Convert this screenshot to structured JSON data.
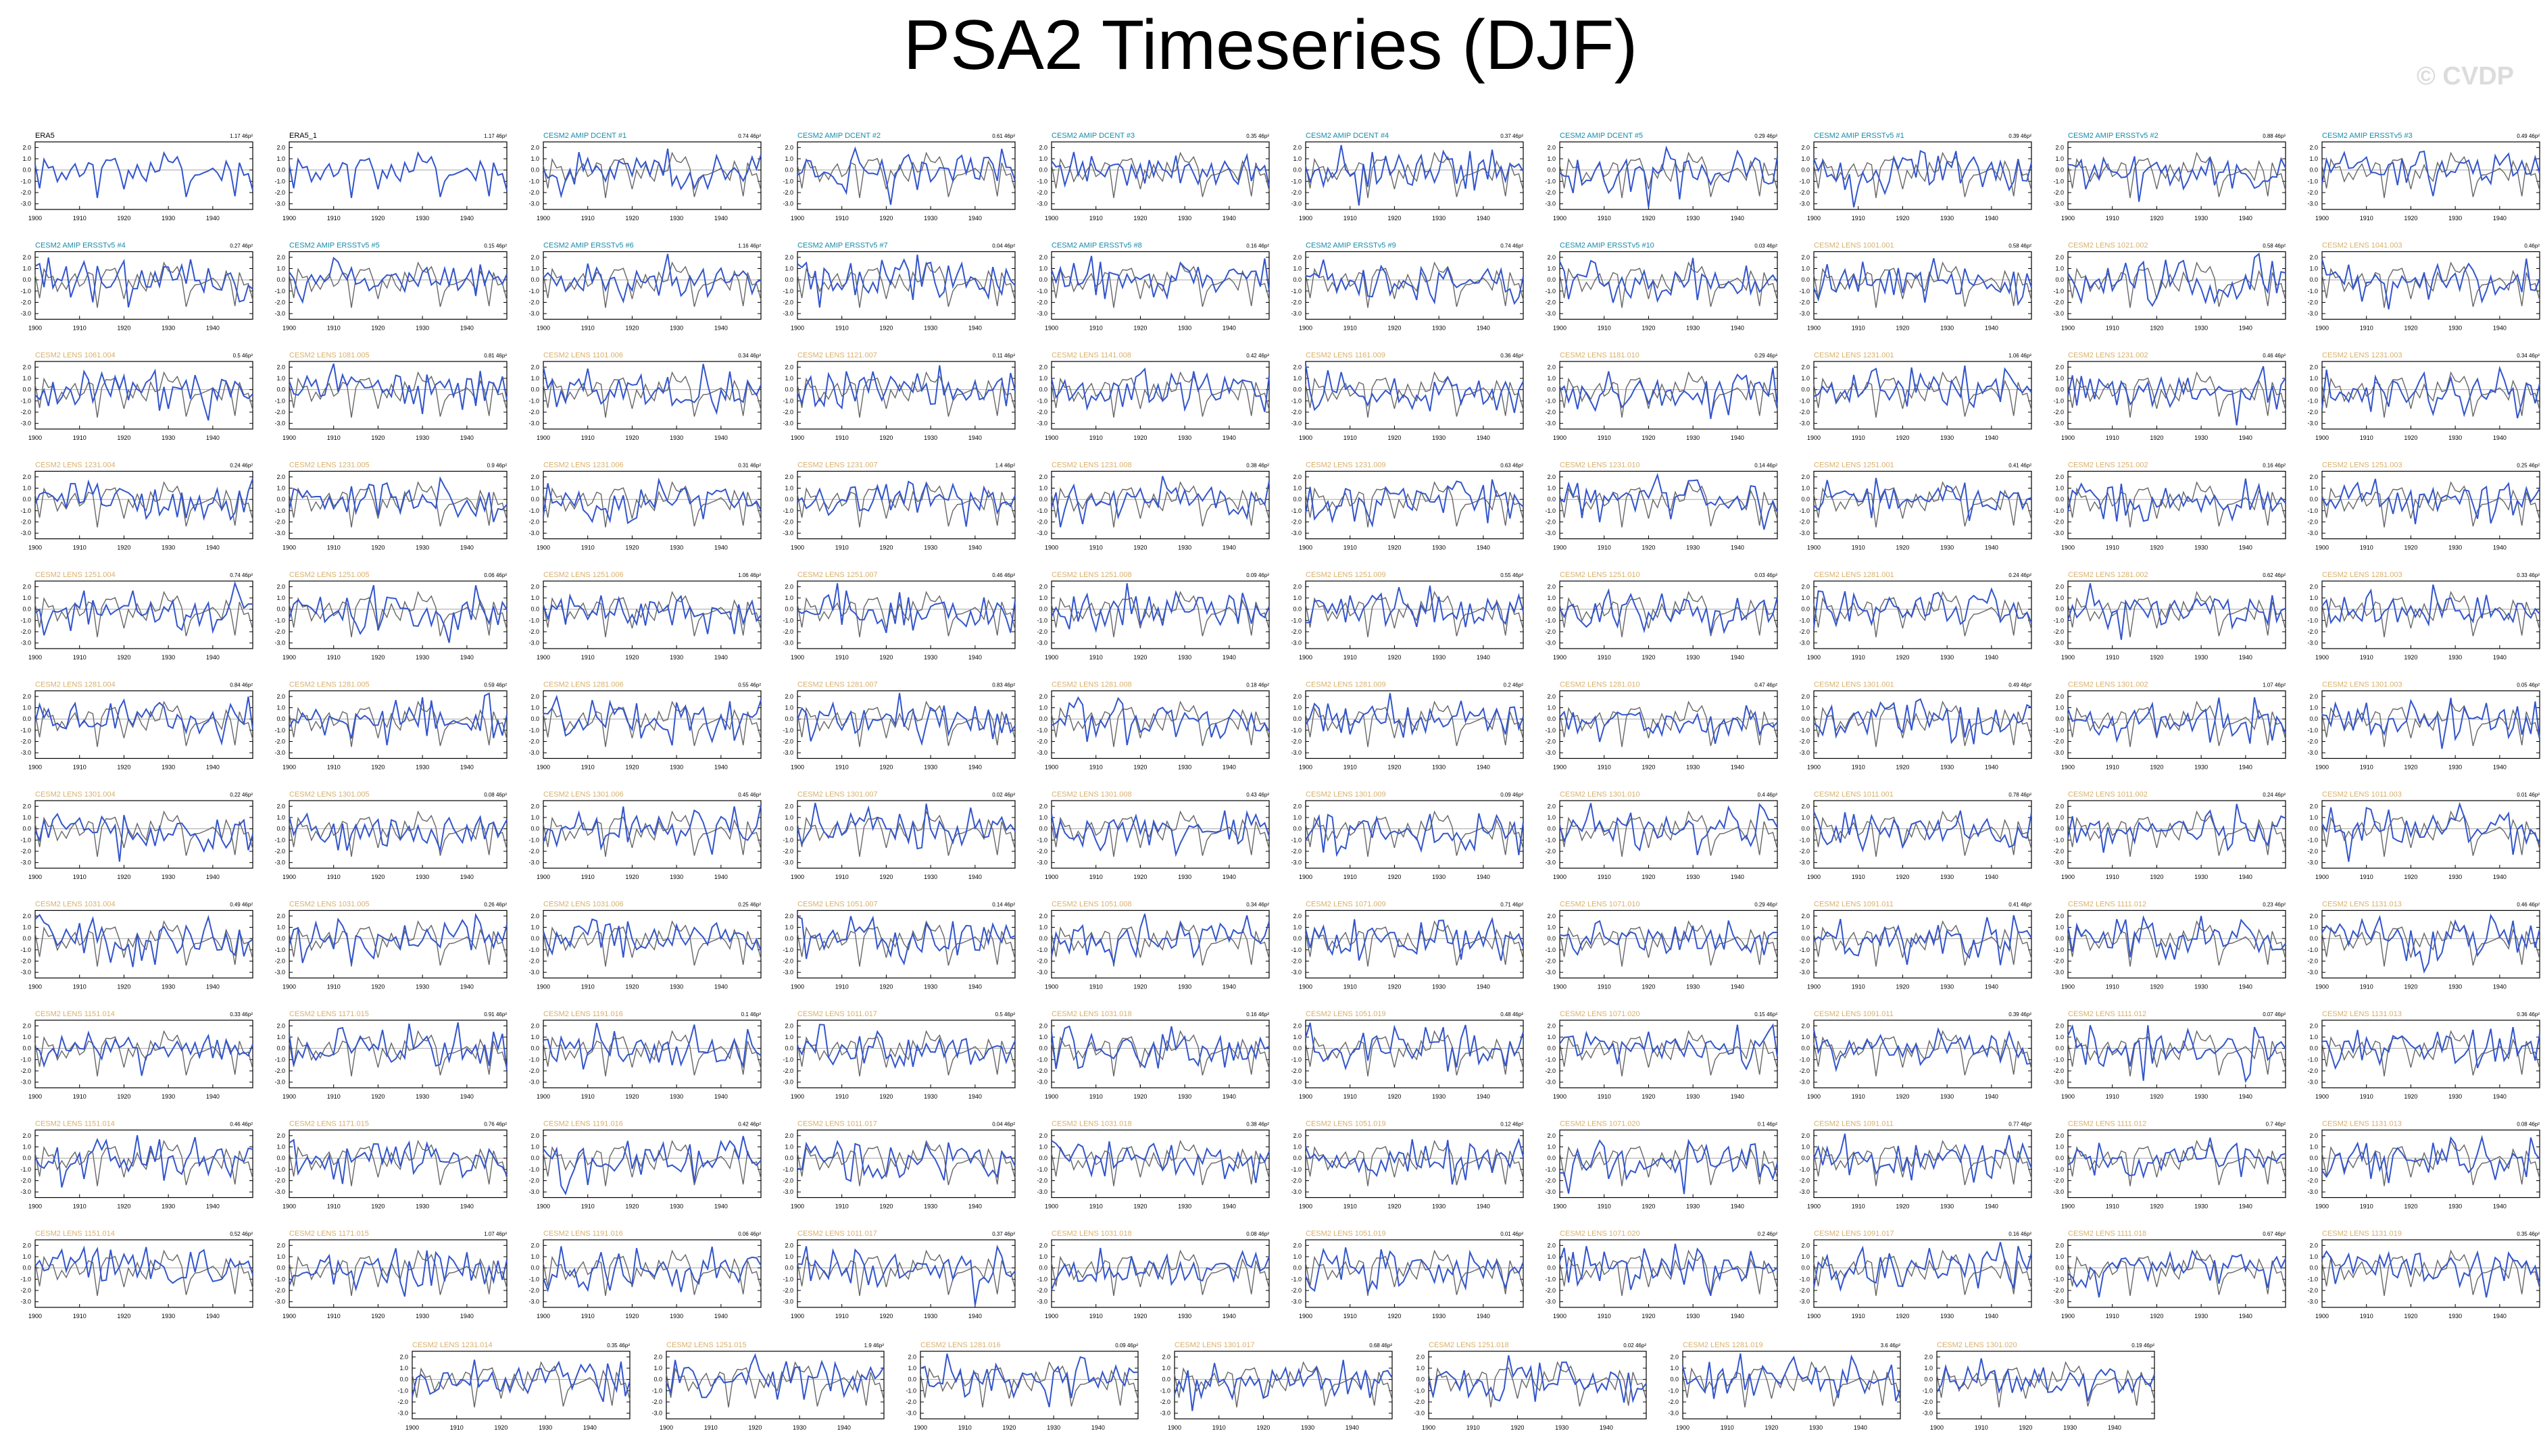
{
  "title": "PSA2 Timeseries (DJF)",
  "watermark": "© CVDP",
  "colors": {
    "simulation": "#3355cc",
    "observation": "#666666",
    "obs_title": "#000000",
    "amip_title": "#1a8aa8",
    "lens_title": "#d9b06a"
  },
  "chart_data": {
    "type": "line",
    "x_range": [
      1900,
      1949
    ],
    "xticks": [
      1900,
      1910,
      1920,
      1930,
      1940
    ],
    "yticks": [
      "2.0",
      "1.0",
      "0.0",
      "-1.0",
      "-2.0",
      "-3.0"
    ],
    "ylim": [
      -3.5,
      2.5
    ],
    "panels": [
      {
        "label": "ERA5",
        "value": "1.17 46p²",
        "kind": "obs"
      },
      {
        "label": "ERA5_1",
        "value": "1.17 46p²",
        "kind": "obs"
      },
      {
        "label": "CESM2 AMIP DCENT #1",
        "value": "0.74 46p²",
        "kind": "amip"
      },
      {
        "label": "CESM2 AMIP DCENT #2",
        "value": "0.61 46p²",
        "kind": "amip"
      },
      {
        "label": "CESM2 AMIP DCENT #3",
        "value": "0.35 46p²",
        "kind": "amip"
      },
      {
        "label": "CESM2 AMIP DCENT #4",
        "value": "0.37 46p²",
        "kind": "amip"
      },
      {
        "label": "CESM2 AMIP DCENT #5",
        "value": "0.29 46p²",
        "kind": "amip"
      },
      {
        "label": "CESM2 AMIP ERSSTv5 #1",
        "value": "0.39 46p²",
        "kind": "amip"
      },
      {
        "label": "CESM2 AMIP ERSSTv5 #2",
        "value": "0.88 46p²",
        "kind": "amip"
      },
      {
        "label": "CESM2 AMIP ERSSTv5 #3",
        "value": "0.49 46p²",
        "kind": "amip"
      },
      {
        "label": "CESM2 AMIP ERSSTv5 #4",
        "value": "0.27 46p²",
        "kind": "amip"
      },
      {
        "label": "CESM2 AMIP ERSSTv5 #5",
        "value": "0.15 46p²",
        "kind": "amip"
      },
      {
        "label": "CESM2 AMIP ERSSTv5 #6",
        "value": "1.16 46p²",
        "kind": "amip"
      },
      {
        "label": "CESM2 AMIP ERSSTv5 #7",
        "value": "0.04 46p²",
        "kind": "amip"
      },
      {
        "label": "CESM2 AMIP ERSSTv5 #8",
        "value": "0.16 46p²",
        "kind": "amip"
      },
      {
        "label": "CESM2 AMIP ERSSTv5 #9",
        "value": "0.74 46p²",
        "kind": "amip"
      },
      {
        "label": "CESM2 AMIP ERSSTv5 #10",
        "value": "0.03 46p²",
        "kind": "amip"
      },
      {
        "label": "CESM2 LENS 1001.001",
        "value": "0.58 46p²",
        "kind": "lens"
      },
      {
        "label": "CESM2 LENS 1021.002",
        "value": "0.58 46p²",
        "kind": "lens"
      },
      {
        "label": "CESM2 LENS 1041.003",
        "value": "0.46p²",
        "kind": "lens"
      },
      {
        "label": "CESM2 LENS 1061.004",
        "value": "0.5 46p²",
        "kind": "lens"
      },
      {
        "label": "CESM2 LENS 1081.005",
        "value": "0.81 46p²",
        "kind": "lens"
      },
      {
        "label": "CESM2 LENS 1101.006",
        "value": "0.34 46p²",
        "kind": "lens"
      },
      {
        "label": "CESM2 LENS 1121.007",
        "value": "0.11 46p²",
        "kind": "lens"
      },
      {
        "label": "CESM2 LENS 1141.008",
        "value": "0.42 46p²",
        "kind": "lens"
      },
      {
        "label": "CESM2 LENS 1161.009",
        "value": "0.36 46p²",
        "kind": "lens"
      },
      {
        "label": "CESM2 LENS 1181.010",
        "value": "0.29 46p²",
        "kind": "lens"
      },
      {
        "label": "CESM2 LENS 1231.001",
        "value": "1.06 46p²",
        "kind": "lens"
      },
      {
        "label": "CESM2 LENS 1231.002",
        "value": "0.46 46p²",
        "kind": "lens"
      },
      {
        "label": "CESM2 LENS 1231.003",
        "value": "0.34 46p²",
        "kind": "lens"
      },
      {
        "label": "CESM2 LENS 1231.004",
        "value": "0.24 46p²",
        "kind": "lens"
      },
      {
        "label": "CESM2 LENS 1231.005",
        "value": "0.9 46p²",
        "kind": "lens"
      },
      {
        "label": "CESM2 LENS 1231.006",
        "value": "0.31 46p²",
        "kind": "lens"
      },
      {
        "label": "CESM2 LENS 1231.007",
        "value": "1.4 46p²",
        "kind": "lens"
      },
      {
        "label": "CESM2 LENS 1231.008",
        "value": "0.38 46p²",
        "kind": "lens"
      },
      {
        "label": "CESM2 LENS 1231.009",
        "value": "0.63 46p²",
        "kind": "lens"
      },
      {
        "label": "CESM2 LENS 1231.010",
        "value": "0.14 46p²",
        "kind": "lens"
      },
      {
        "label": "CESM2 LENS 1251.001",
        "value": "0.41 46p²",
        "kind": "lens"
      },
      {
        "label": "CESM2 LENS 1251.002",
        "value": "0.16 46p²",
        "kind": "lens"
      },
      {
        "label": "CESM2 LENS 1251.003",
        "value": "0.25 46p²",
        "kind": "lens"
      },
      {
        "label": "CESM2 LENS 1251.004",
        "value": "0.74 46p²",
        "kind": "lens"
      },
      {
        "label": "CESM2 LENS 1251.005",
        "value": "0.06 46p²",
        "kind": "lens"
      },
      {
        "label": "CESM2 LENS 1251.006",
        "value": "1.06 46p²",
        "kind": "lens"
      },
      {
        "label": "CESM2 LENS 1251.007",
        "value": "0.46 46p²",
        "kind": "lens"
      },
      {
        "label": "CESM2 LENS 1251.008",
        "value": "0.09 46p²",
        "kind": "lens"
      },
      {
        "label": "CESM2 LENS 1251.009",
        "value": "0.55 46p²",
        "kind": "lens"
      },
      {
        "label": "CESM2 LENS 1251.010",
        "value": "0.03 46p²",
        "kind": "lens"
      },
      {
        "label": "CESM2 LENS 1281.001",
        "value": "0.24 46p²",
        "kind": "lens"
      },
      {
        "label": "CESM2 LENS 1281.002",
        "value": "0.62 46p²",
        "kind": "lens"
      },
      {
        "label": "CESM2 LENS 1281.003",
        "value": "0.33 46p²",
        "kind": "lens"
      },
      {
        "label": "CESM2 LENS 1281.004",
        "value": "0.84 46p²",
        "kind": "lens"
      },
      {
        "label": "CESM2 LENS 1281.005",
        "value": "0.59 46p²",
        "kind": "lens"
      },
      {
        "label": "CESM2 LENS 1281.006",
        "value": "0.55 46p²",
        "kind": "lens"
      },
      {
        "label": "CESM2 LENS 1281.007",
        "value": "0.83 46p²",
        "kind": "lens"
      },
      {
        "label": "CESM2 LENS 1281.008",
        "value": "0.18 46p²",
        "kind": "lens"
      },
      {
        "label": "CESM2 LENS 1281.009",
        "value": "0.2 46p²",
        "kind": "lens"
      },
      {
        "label": "CESM2 LENS 1281.010",
        "value": "0.47 46p²",
        "kind": "lens"
      },
      {
        "label": "CESM2 LENS 1301.001",
        "value": "0.49 46p²",
        "kind": "lens"
      },
      {
        "label": "CESM2 LENS 1301.002",
        "value": "1.07 46p²",
        "kind": "lens"
      },
      {
        "label": "CESM2 LENS 1301.003",
        "value": "0.05 46p²",
        "kind": "lens"
      },
      {
        "label": "CESM2 LENS 1301.004",
        "value": "0.22 46p²",
        "kind": "lens"
      },
      {
        "label": "CESM2 LENS 1301.005",
        "value": "0.08 46p²",
        "kind": "lens"
      },
      {
        "label": "CESM2 LENS 1301.006",
        "value": "0.45 46p²",
        "kind": "lens"
      },
      {
        "label": "CESM2 LENS 1301.007",
        "value": "0.02 46p²",
        "kind": "lens"
      },
      {
        "label": "CESM2 LENS 1301.008",
        "value": "0.43 46p²",
        "kind": "lens"
      },
      {
        "label": "CESM2 LENS 1301.009",
        "value": "0.09 46p²",
        "kind": "lens"
      },
      {
        "label": "CESM2 LENS 1301.010",
        "value": "0.4 46p²",
        "kind": "lens"
      },
      {
        "label": "CESM2 LENS 1011.001",
        "value": "0.78 46p²",
        "kind": "lens"
      },
      {
        "label": "CESM2 LENS 1011.002",
        "value": "0.24 46p²",
        "kind": "lens"
      },
      {
        "label": "CESM2 LENS 1011.003",
        "value": "0.01 46p²",
        "kind": "lens"
      },
      {
        "label": "CESM2 LENS 1031.004",
        "value": "0.49 46p²",
        "kind": "lens"
      },
      {
        "label": "CESM2 LENS 1031.005",
        "value": "0.26 46p²",
        "kind": "lens"
      },
      {
        "label": "CESM2 LENS 1031.006",
        "value": "0.25 46p²",
        "kind": "lens"
      },
      {
        "label": "CESM2 LENS 1051.007",
        "value": "0.14 46p²",
        "kind": "lens"
      },
      {
        "label": "CESM2 LENS 1051.008",
        "value": "0.34 46p²",
        "kind": "lens"
      },
      {
        "label": "CESM2 LENS 1071.009",
        "value": "0.71 46p²",
        "kind": "lens"
      },
      {
        "label": "CESM2 LENS 1071.010",
        "value": "0.29 46p²",
        "kind": "lens"
      },
      {
        "label": "CESM2 LENS 1091.011",
        "value": "0.41 46p²",
        "kind": "lens"
      },
      {
        "label": "CESM2 LENS 1111.012",
        "value": "0.23 46p²",
        "kind": "lens"
      },
      {
        "label": "CESM2 LENS 1131.013",
        "value": "0.46 46p²",
        "kind": "lens"
      },
      {
        "label": "CESM2 LENS 1151.014",
        "value": "0.33 46p²",
        "kind": "lens"
      },
      {
        "label": "CESM2 LENS 1171.015",
        "value": "0.91 46p²",
        "kind": "lens"
      },
      {
        "label": "CESM2 LENS 1191.016",
        "value": "0.1 46p²",
        "kind": "lens"
      },
      {
        "label": "CESM2 LENS 1011.017",
        "value": "0.5 46p²",
        "kind": "lens"
      },
      {
        "label": "CESM2 LENS 1031.018",
        "value": "0.16 46p²",
        "kind": "lens"
      },
      {
        "label": "CESM2 LENS 1051.019",
        "value": "0.48 46p²",
        "kind": "lens"
      },
      {
        "label": "CESM2 LENS 1071.020",
        "value": "0.15 46p²",
        "kind": "lens"
      },
      {
        "label": "CESM2 LENS 1091.011",
        "value": "0.39 46p²",
        "kind": "lens"
      },
      {
        "label": "CESM2 LENS 1111.012",
        "value": "0.07 46p²",
        "kind": "lens"
      },
      {
        "label": "CESM2 LENS 1131.013",
        "value": "0.36 46p²",
        "kind": "lens"
      },
      {
        "label": "CESM2 LENS 1151.014",
        "value": "0.46 46p²",
        "kind": "lens"
      },
      {
        "label": "CESM2 LENS 1171.015",
        "value": "0.76 46p²",
        "kind": "lens"
      },
      {
        "label": "CESM2 LENS 1191.016",
        "value": "0.42 46p²",
        "kind": "lens"
      },
      {
        "label": "CESM2 LENS 1011.017",
        "value": "0.04 46p²",
        "kind": "lens"
      },
      {
        "label": "CESM2 LENS 1031.018",
        "value": "0.38 46p²",
        "kind": "lens"
      },
      {
        "label": "CESM2 LENS 1051.019",
        "value": "0.12 46p²",
        "kind": "lens"
      },
      {
        "label": "CESM2 LENS 1071.020",
        "value": "0.1 46p²",
        "kind": "lens"
      },
      {
        "label": "CESM2 LENS 1091.011",
        "value": "0.77 46p²",
        "kind": "lens"
      },
      {
        "label": "CESM2 LENS 1111.012",
        "value": "0.7 46p²",
        "kind": "lens"
      },
      {
        "label": "CESM2 LENS 1131.013",
        "value": "0.08 46p²",
        "kind": "lens"
      },
      {
        "label": "CESM2 LENS 1151.014",
        "value": "0.52 46p²",
        "kind": "lens"
      },
      {
        "label": "CESM2 LENS 1171.015",
        "value": "1.07 46p²",
        "kind": "lens"
      },
      {
        "label": "CESM2 LENS 1191.016",
        "value": "0.06 46p²",
        "kind": "lens"
      },
      {
        "label": "CESM2 LENS 1011.017",
        "value": "0.37 46p²",
        "kind": "lens"
      },
      {
        "label": "CESM2 LENS 1031.018",
        "value": "0.08 46p²",
        "kind": "lens"
      },
      {
        "label": "CESM2 LENS 1051.019",
        "value": "0.01 46p²",
        "kind": "lens"
      },
      {
        "label": "CESM2 LENS 1071.020",
        "value": "0.2 46p²",
        "kind": "lens"
      },
      {
        "label": "CESM2 LENS 1091.017",
        "value": "0.16 46p²",
        "kind": "lens"
      },
      {
        "label": "CESM2 LENS 1111.018",
        "value": "0.67 46p²",
        "kind": "lens"
      },
      {
        "label": "CESM2 LENS 1131.019",
        "value": "0.35 46p²",
        "kind": "lens"
      },
      {
        "label": "CESM2 LENS 1231.014",
        "value": "0.35 46p²",
        "kind": "lens"
      },
      {
        "label": "CESM2 LENS 1251.015",
        "value": "1.9 46p²",
        "kind": "lens"
      },
      {
        "label": "CESM2 LENS 1281.016",
        "value": "0.09 46p²",
        "kind": "lens"
      },
      {
        "label": "CESM2 LENS 1301.017",
        "value": "0.68 46p²",
        "kind": "lens"
      },
      {
        "label": "CESM2 LENS 1251.018",
        "value": "0.02 46p²",
        "kind": "lens"
      },
      {
        "label": "CESM2 LENS 1281.019",
        "value": "3.6 46p²",
        "kind": "lens"
      },
      {
        "label": "CESM2 LENS 1301.020",
        "value": "0.19 46p²",
        "kind": "lens"
      }
    ]
  }
}
